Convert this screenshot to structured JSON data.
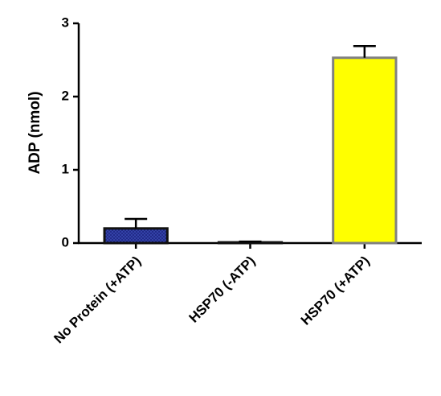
{
  "chart_data": {
    "type": "bar",
    "y_label": "ADP (nmol)",
    "categories": [
      "No Protein (+ATP)",
      "HSP70 (-ATP)",
      "HSP70 (+ATP)"
    ],
    "values": [
      0.2,
      0.01,
      2.53
    ],
    "errors": [
      0.13,
      0.01,
      0.16
    ],
    "colors": [
      "#1c2580",
      "#1c2580",
      "#ffff00"
    ],
    "edge_colors": [
      "#111111",
      "#111111",
      "#808080"
    ],
    "ylim": [
      0,
      3
    ],
    "yticks": [
      0,
      1,
      2,
      3
    ],
    "grid": false
  }
}
